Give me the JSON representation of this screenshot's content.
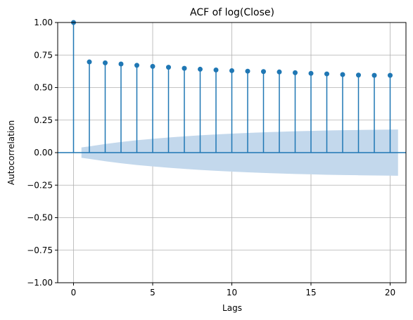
{
  "chart_data": {
    "type": "stem",
    "title": "ACF of log(Close)",
    "xlabel": "Lags",
    "ylabel": "Autocorrelation",
    "xlim": [
      -1,
      21
    ],
    "ylim": [
      -1.0,
      1.0
    ],
    "x_ticks": [
      0,
      5,
      10,
      15,
      20
    ],
    "y_ticks": [
      "-1.00",
      "-0.75",
      "-0.50",
      "-0.25",
      "0.00",
      "0.25",
      "0.50",
      "0.75",
      "1.00"
    ],
    "grid": true,
    "lags": [
      0,
      1,
      2,
      3,
      4,
      5,
      6,
      7,
      8,
      9,
      10,
      11,
      12,
      13,
      14,
      15,
      16,
      17,
      18,
      19,
      20
    ],
    "values": [
      1.0,
      0.697,
      0.69,
      0.681,
      0.671,
      0.663,
      0.656,
      0.648,
      0.641,
      0.635,
      0.63,
      0.626,
      0.623,
      0.62,
      0.614,
      0.609,
      0.605,
      0.6,
      0.596,
      0.594,
      0.594
    ],
    "confidence_band": {
      "lags": [
        0.5,
        1,
        2,
        3,
        4,
        5,
        6,
        7,
        8,
        9,
        10,
        11,
        12,
        13,
        14,
        15,
        16,
        17,
        18,
        19,
        20,
        20.5
      ],
      "upper": [
        0.04,
        0.048,
        0.066,
        0.082,
        0.095,
        0.106,
        0.116,
        0.125,
        0.133,
        0.14,
        0.146,
        0.151,
        0.156,
        0.16,
        0.164,
        0.167,
        0.17,
        0.172,
        0.174,
        0.176,
        0.177,
        0.178
      ]
    },
    "colors": {
      "stem": "#1f77b4",
      "band": "#c3d8ec",
      "grid": "#b0b0b0"
    }
  }
}
